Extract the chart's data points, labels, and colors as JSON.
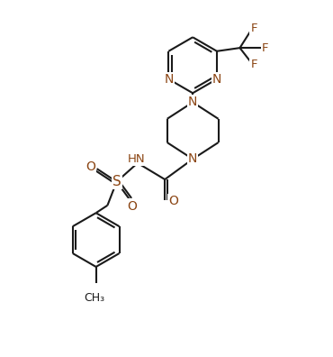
{
  "background_color": "#ffffff",
  "line_color": "#1a1a1a",
  "heteroatom_color": "#8B4513",
  "bond_width": 1.5,
  "figsize": [
    3.7,
    3.96
  ],
  "dpi": 100,
  "xlim": [
    0,
    10
  ],
  "ylim": [
    0,
    10.7
  ]
}
